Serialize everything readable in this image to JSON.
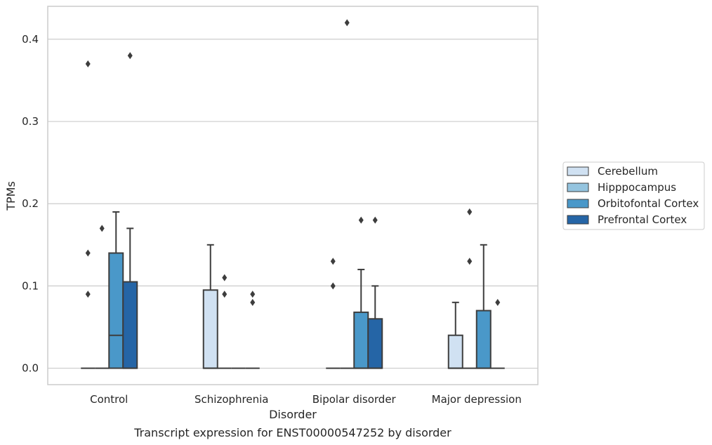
{
  "caption": "Transcript expression for ENST00000547252 by disorder",
  "chart_data": {
    "type": "box",
    "title": "",
    "xlabel": "Disorder",
    "ylabel": "TPMs",
    "ylim": [
      -0.02,
      0.44
    ],
    "yticks": [
      0.0,
      0.1,
      0.2,
      0.3,
      0.4
    ],
    "ytick_labels": [
      "0.0",
      "0.1",
      "0.2",
      "0.3",
      "0.4"
    ],
    "grid": "horizontal",
    "legend_position": "right",
    "categories": [
      "Control",
      "Schizophrenia",
      "Bipolar disorder",
      "Major depression"
    ],
    "series": [
      {
        "name": "Cerebellum",
        "color": "#d0e1f2",
        "boxes": [
          {
            "q1": 0.0,
            "median": 0.0,
            "q3": 0.0,
            "whislo": 0.0,
            "whishi": 0.0,
            "fliers": [
              0.09,
              0.14,
              0.37
            ]
          },
          {
            "q1": 0.0,
            "median": 0.0,
            "q3": 0.095,
            "whislo": 0.0,
            "whishi": 0.15,
            "fliers": []
          },
          {
            "q1": 0.0,
            "median": 0.0,
            "q3": 0.0,
            "whislo": 0.0,
            "whishi": 0.0,
            "fliers": [
              0.1,
              0.13
            ]
          },
          {
            "q1": 0.0,
            "median": 0.0,
            "q3": 0.04,
            "whislo": 0.0,
            "whishi": 0.08,
            "fliers": []
          }
        ]
      },
      {
        "name": "Hipppocampus",
        "color": "#94c4df",
        "boxes": [
          {
            "q1": 0.0,
            "median": 0.0,
            "q3": 0.0,
            "whislo": 0.0,
            "whishi": 0.0,
            "fliers": [
              0.17
            ]
          },
          {
            "q1": 0.0,
            "median": 0.0,
            "q3": 0.0,
            "whislo": 0.0,
            "whishi": 0.0,
            "fliers": [
              0.09,
              0.11
            ]
          },
          {
            "q1": 0.0,
            "median": 0.0,
            "q3": 0.0,
            "whislo": 0.0,
            "whishi": 0.0,
            "fliers": [
              0.42
            ]
          },
          {
            "q1": 0.0,
            "median": 0.0,
            "q3": 0.0,
            "whislo": 0.0,
            "whishi": 0.0,
            "fliers": [
              0.13,
              0.19
            ]
          }
        ]
      },
      {
        "name": "Orbitofontal Cortex",
        "color": "#4a98c9",
        "boxes": [
          {
            "q1": 0.0,
            "median": 0.04,
            "q3": 0.14,
            "whislo": 0.0,
            "whishi": 0.19,
            "fliers": []
          },
          {
            "q1": 0.0,
            "median": 0.0,
            "q3": 0.0,
            "whislo": 0.0,
            "whishi": 0.0,
            "fliers": []
          },
          {
            "q1": 0.0,
            "median": 0.0,
            "q3": 0.068,
            "whislo": 0.0,
            "whishi": 0.12,
            "fliers": [
              0.18
            ]
          },
          {
            "q1": 0.0,
            "median": 0.0,
            "q3": 0.07,
            "whislo": 0.0,
            "whishi": 0.15,
            "fliers": []
          }
        ]
      },
      {
        "name": "Prefrontal Cortex",
        "color": "#2565a6",
        "boxes": [
          {
            "q1": 0.0,
            "median": 0.0,
            "q3": 0.105,
            "whislo": 0.0,
            "whishi": 0.17,
            "fliers": [
              0.38
            ]
          },
          {
            "q1": 0.0,
            "median": 0.0,
            "q3": 0.0,
            "whislo": 0.0,
            "whishi": 0.0,
            "fliers": [
              0.08,
              0.09
            ]
          },
          {
            "q1": 0.0,
            "median": 0.0,
            "q3": 0.06,
            "whislo": 0.0,
            "whishi": 0.1,
            "fliers": [
              0.18
            ]
          },
          {
            "q1": 0.0,
            "median": 0.0,
            "q3": 0.0,
            "whislo": 0.0,
            "whishi": 0.0,
            "fliers": [
              0.08
            ]
          }
        ]
      }
    ]
  }
}
